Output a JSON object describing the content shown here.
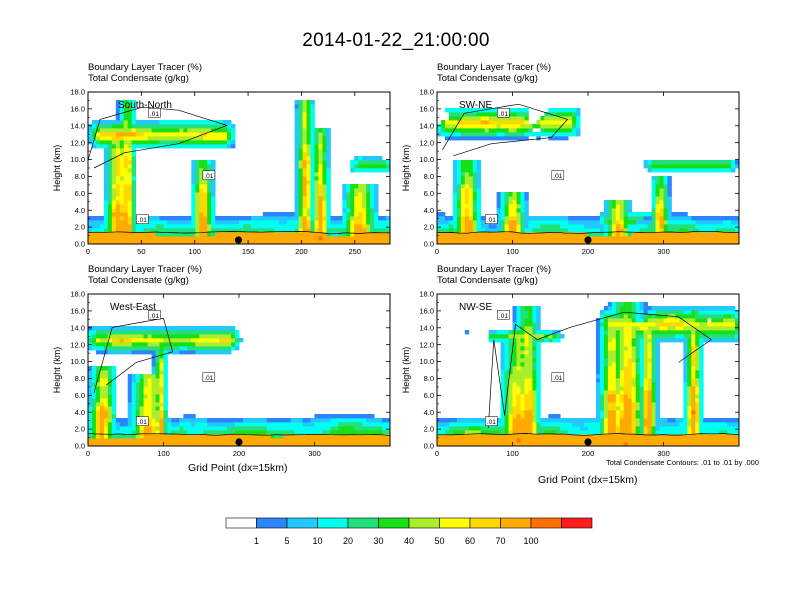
{
  "title": "2014-01-22_21:00:00",
  "panel_titles": {
    "line1": "Boundary Layer Tracer   (%)",
    "line2": "Total Condensate   (g/kg)"
  },
  "x_label": "Grid Point (dx=15km)",
  "contour_note": "Total Condensate Contours: .01 to .01 by .000",
  "contour_label": ".01",
  "colors": [
    "#ffffff",
    "#2c84ff",
    "#22c8ff",
    "#00ffee",
    "#22e07a",
    "#18e018",
    "#a8ee2a",
    "#ffff00",
    "#ffd800",
    "#ffaa00",
    "#ff7000",
    "#ff1c1c"
  ],
  "colorbar": {
    "boundaries": [
      1,
      5,
      10,
      20,
      30,
      40,
      50,
      60,
      70,
      100
    ],
    "labels": [
      "1",
      "5",
      "10",
      "20",
      "30",
      "40",
      "50",
      "60",
      "70",
      "100"
    ]
  },
  "chart_data": [
    {
      "type": "heatmap",
      "name": "South-North",
      "title": "Boundary Layer Tracer (%) / Total Condensate (g/kg)",
      "xlabel": "",
      "ylabel": "Height (km)",
      "xlim": [
        0,
        283
      ],
      "ylim": [
        0,
        18
      ],
      "x_ticks": [
        0,
        50,
        100,
        150,
        200,
        250
      ],
      "y_ticks": [
        0,
        2,
        4,
        6,
        8,
        10,
        12,
        14,
        16,
        18
      ],
      "y_tick_labels": [
        "0.0",
        "2.0",
        "4.0",
        "6.0",
        "8.0",
        "10.0",
        "12.0",
        "14.0",
        "16.0",
        "18.0"
      ],
      "marker_x": 141
    },
    {
      "type": "heatmap",
      "name": "SW-NE",
      "title": "Boundary Layer Tracer (%) / Total Condensate (g/kg)",
      "xlabel": "",
      "ylabel": "Height (km)",
      "xlim": [
        0,
        400
      ],
      "ylim": [
        0,
        18
      ],
      "x_ticks": [
        0,
        100,
        200,
        300
      ],
      "y_ticks": [
        0,
        2,
        4,
        6,
        8,
        10,
        12,
        14,
        16,
        18
      ],
      "y_tick_labels": [
        "0.0",
        "2.0",
        "4.0",
        "6.0",
        "8.0",
        "10.0",
        "12.0",
        "14.0",
        "16.0",
        "18.0"
      ],
      "marker_x": 200
    },
    {
      "type": "heatmap",
      "name": "West-East",
      "title": "Boundary Layer Tracer (%) / Total Condensate (g/kg)",
      "xlabel": "Grid Point (dx=15km)",
      "ylabel": "Height (km)",
      "xlim": [
        0,
        400
      ],
      "ylim": [
        0,
        18
      ],
      "x_ticks": [
        0,
        100,
        200,
        300
      ],
      "y_ticks": [
        0,
        2,
        4,
        6,
        8,
        10,
        12,
        14,
        16,
        18
      ],
      "y_tick_labels": [
        "0.0",
        "2.0",
        "4.0",
        "6.0",
        "8.0",
        "10.0",
        "12.0",
        "14.0",
        "16.0",
        "18.0"
      ],
      "marker_x": 200
    },
    {
      "type": "heatmap",
      "name": "NW-SE",
      "title": "Boundary Layer Tracer (%) / Total Condensate (g/kg)",
      "xlabel": "Grid Point (dx=15km)",
      "ylabel": "Height (km)",
      "xlim": [
        0,
        400
      ],
      "ylim": [
        0,
        18
      ],
      "x_ticks": [
        0,
        100,
        200,
        300
      ],
      "y_ticks": [
        0,
        2,
        4,
        6,
        8,
        10,
        12,
        14,
        16,
        18
      ],
      "y_tick_labels": [
        "0.0",
        "2.0",
        "4.0",
        "6.0",
        "8.0",
        "10.0",
        "12.0",
        "14.0",
        "16.0",
        "18.0"
      ],
      "marker_x": 200
    }
  ]
}
